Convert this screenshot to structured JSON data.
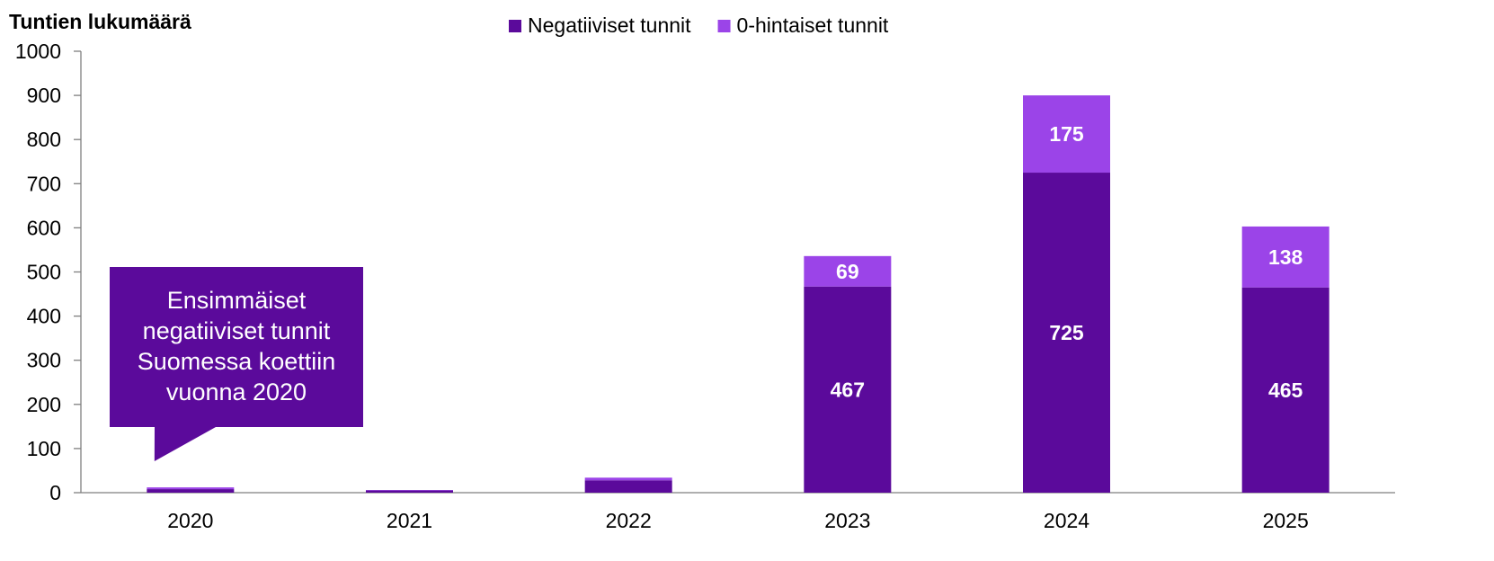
{
  "chart_data": {
    "type": "bar",
    "stacked": true,
    "ylabel": "Tuntien lukumäärä",
    "xlabel": "",
    "ylim": [
      0,
      1000
    ],
    "yticks": [
      0,
      100,
      200,
      300,
      400,
      500,
      600,
      700,
      800,
      900,
      1000
    ],
    "categories": [
      "2020",
      "2021",
      "2022",
      "2023",
      "2024",
      "2025"
    ],
    "legend_position": "top-center",
    "grid": false,
    "series": [
      {
        "name": "Negatiiviset tunnit",
        "color": "#5b0a9b",
        "values": [
          8,
          5,
          28,
          467,
          725,
          465
        ],
        "labels": [
          "",
          "",
          "",
          "467",
          "725",
          "465"
        ]
      },
      {
        "name": "0-hintaiset tunnit",
        "color": "#9b44e8",
        "values": [
          4,
          1,
          6,
          69,
          175,
          138
        ],
        "labels": [
          "",
          "",
          "",
          "69",
          "175",
          "138"
        ]
      }
    ],
    "annotation": {
      "lines": [
        "Ensimmäiset",
        "negatiiviset tunnit",
        "Suomessa koettiin",
        "vuonna 2020"
      ],
      "color": "#5b0a9b",
      "points_to_category": "2020"
    }
  }
}
